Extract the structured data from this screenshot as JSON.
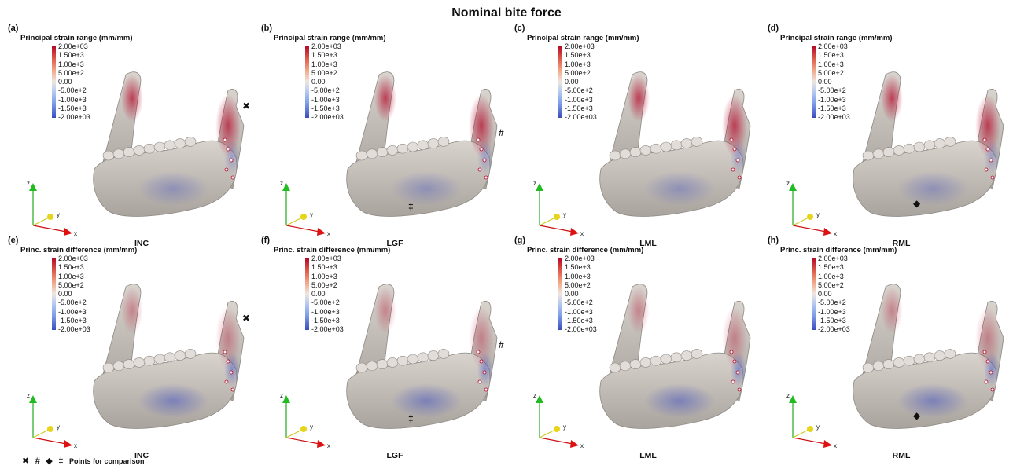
{
  "title": "Nominal bite force",
  "colorbar_ticks": [
    "2.00e+03",
    "1.50e+3",
    "1.00e+3",
    "5.00e+2",
    "0.00",
    "-5.00e+2",
    "-1.00e+3",
    "-1.50e+3",
    "-2.00e+03"
  ],
  "axis_labels": {
    "x": "x",
    "y": "y",
    "z": "z"
  },
  "panels": [
    {
      "letter": "(a)",
      "cb_title": "Principal strain range (mm/mm)",
      "label": "INC",
      "marker": "✖",
      "strain": "range"
    },
    {
      "letter": "(b)",
      "cb_title": "Principal strain range (mm/mm)",
      "label": "LGF",
      "marker": "#",
      "marker2": "‡",
      "strain": "range"
    },
    {
      "letter": "(c)",
      "cb_title": "Principal strain range (mm/mm)",
      "label": "LML",
      "strain": "range"
    },
    {
      "letter": "(d)",
      "cb_title": "Principal strain range (mm/mm)",
      "label": "RML",
      "marker": "◆",
      "strain": "range"
    },
    {
      "letter": "(e)",
      "cb_title": "Princ. strain difference (mm/mm)",
      "label": "INC",
      "marker": "✖",
      "strain": "diff"
    },
    {
      "letter": "(f)",
      "cb_title": "Princ. strain difference (mm/mm)",
      "label": "LGF",
      "marker": "#",
      "marker2": "‡",
      "strain": "diff"
    },
    {
      "letter": "(g)",
      "cb_title": "Princ. strain difference (mm/mm)",
      "label": "LML",
      "strain": "diff"
    },
    {
      "letter": "(h)",
      "cb_title": "Princ. strain difference (mm/mm)",
      "label": "RML",
      "marker": "◆",
      "strain": "diff"
    }
  ],
  "legend": {
    "symbols": [
      "✖",
      "#",
      "◆",
      "‡"
    ],
    "text": "Points for comparison"
  },
  "colors": {
    "high": "#b40426",
    "mid": "#efe6e0",
    "low": "#3b4cc0",
    "bone": "#c9c3bd"
  }
}
